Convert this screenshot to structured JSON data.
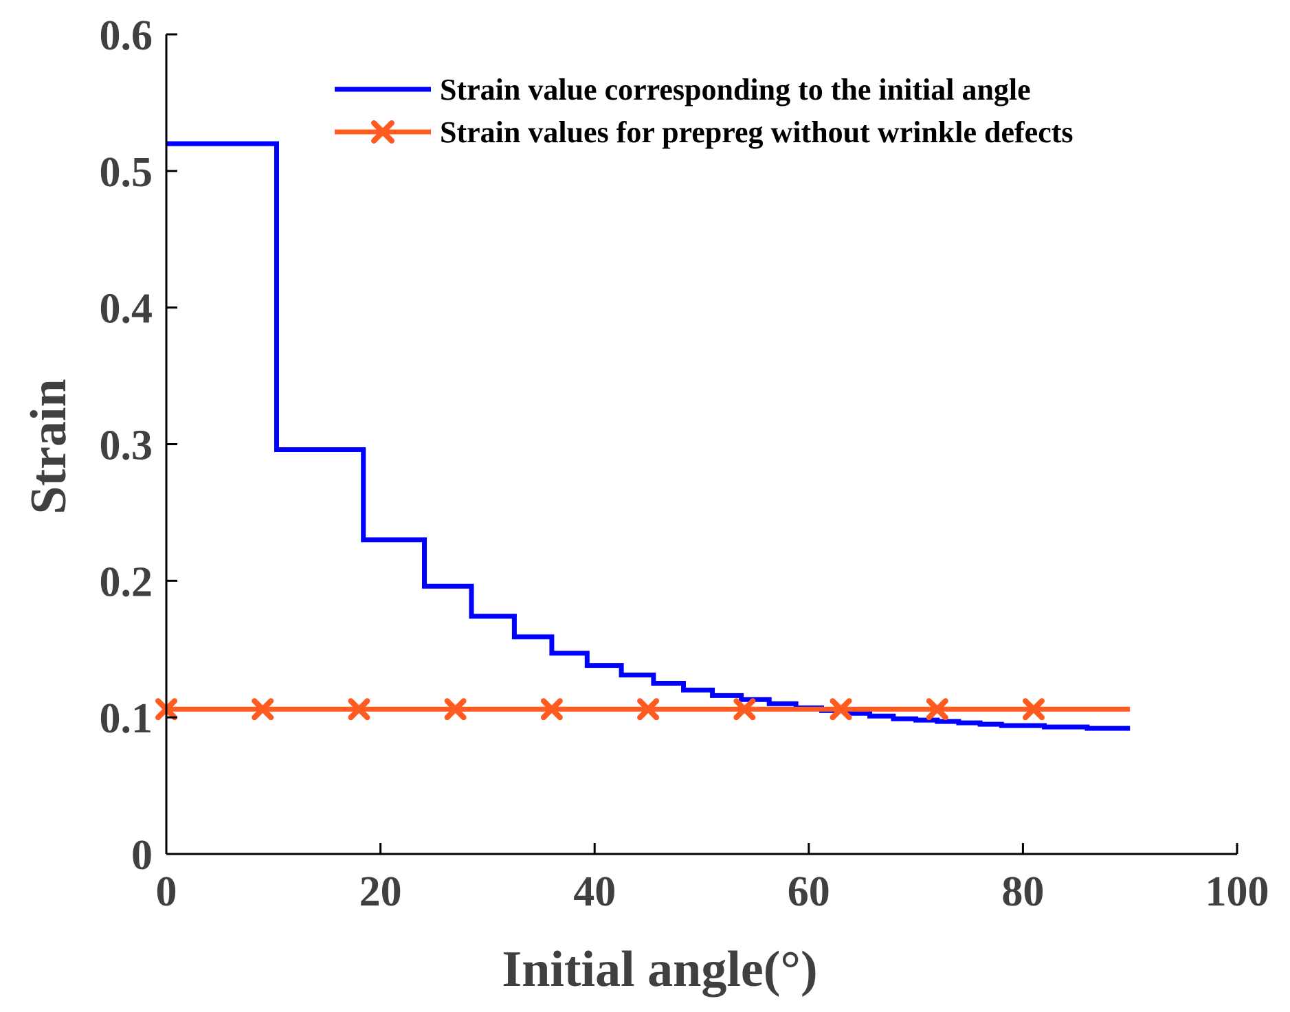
{
  "chart_data": {
    "type": "line",
    "xlabel": "Initial angle(°)",
    "ylabel": "Strain",
    "xlim": [
      0,
      100
    ],
    "ylim": [
      0,
      0.6
    ],
    "xticks": [
      0,
      20,
      40,
      60,
      80,
      100
    ],
    "xtick_labels": [
      "0",
      "20",
      "40",
      "60",
      "80",
      "100"
    ],
    "yticks": [
      0,
      0.1,
      0.2,
      0.3,
      0.4,
      0.5,
      0.6
    ],
    "ytick_labels": [
      "0",
      "0.1",
      "0.2",
      "0.3",
      "0.4",
      "0.5",
      "0.6"
    ],
    "legend_position": "top-right",
    "grid": false,
    "colors": {
      "blue": "#0000ff",
      "orange": "#ff5a1f",
      "axis": "#000000",
      "tick_text": "#404040"
    },
    "series": [
      {
        "name": "Strain value corresponding to the initial angle",
        "color": "#0000ff",
        "style": "step",
        "x": [
          0,
          10.3,
          10.3,
          18.4,
          18.4,
          24.1,
          24.1,
          28.5,
          28.5,
          32.5,
          32.5,
          36.0,
          36.0,
          39.3,
          39.3,
          42.5,
          42.5,
          45.5,
          45.5,
          48.3,
          48.3,
          51.0,
          51.0,
          53.7,
          53.7,
          56.3,
          56.3,
          58.8,
          58.8,
          61.2,
          61.2,
          63.5,
          63.5,
          65.7,
          65.7,
          67.9,
          67.9,
          70.0,
          70.0,
          72.0,
          72.0,
          74.0,
          74.0,
          76.0,
          76.0,
          78.0,
          78.0,
          80.0,
          80.0,
          82.0,
          82.0,
          84.0,
          84.0,
          86.0,
          86.0,
          90.0
        ],
        "y": [
          0.52,
          0.52,
          0.296,
          0.296,
          0.23,
          0.23,
          0.196,
          0.196,
          0.174,
          0.174,
          0.159,
          0.159,
          0.147,
          0.147,
          0.138,
          0.138,
          0.131,
          0.131,
          0.125,
          0.125,
          0.12,
          0.12,
          0.116,
          0.116,
          0.113,
          0.113,
          0.11,
          0.11,
          0.107,
          0.107,
          0.105,
          0.105,
          0.103,
          0.103,
          0.101,
          0.101,
          0.099,
          0.099,
          0.098,
          0.098,
          0.097,
          0.097,
          0.096,
          0.096,
          0.095,
          0.095,
          0.094,
          0.094,
          0.094,
          0.094,
          0.093,
          0.093,
          0.093,
          0.093,
          0.092,
          0.092
        ]
      },
      {
        "name": "Strain values for prepreg without wrinkle defects",
        "color": "#ff5a1f",
        "style": "line-x-markers",
        "x": [
          0,
          90
        ],
        "y": [
          0.106,
          0.106
        ],
        "marker_x": [
          0,
          9,
          18,
          27,
          36,
          45,
          54,
          63,
          72,
          81
        ],
        "marker_y": [
          0.106,
          0.106,
          0.106,
          0.106,
          0.106,
          0.106,
          0.106,
          0.106,
          0.106,
          0.106
        ]
      }
    ]
  }
}
